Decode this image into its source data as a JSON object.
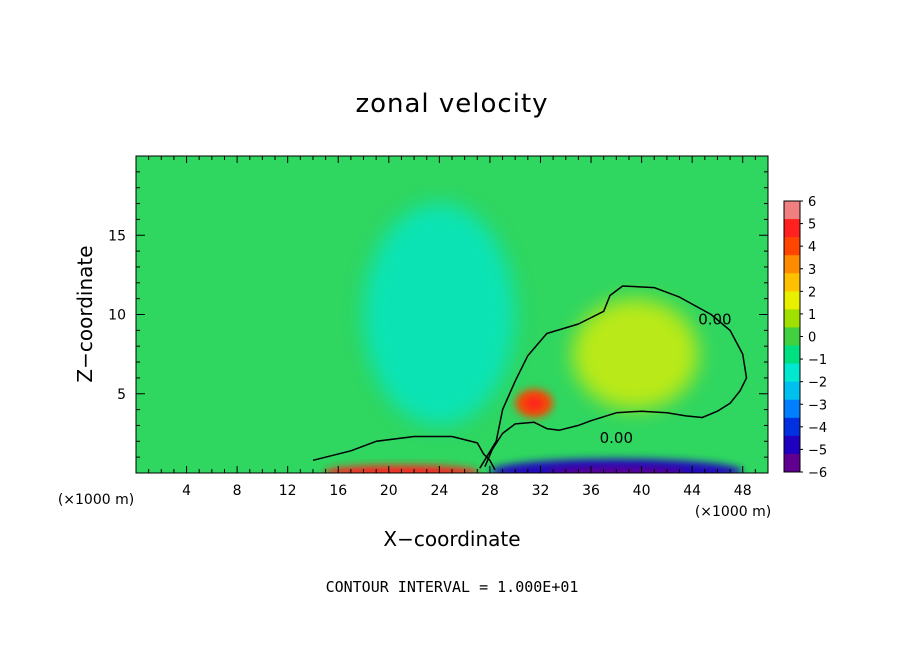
{
  "chart_data": {
    "type": "heatmap",
    "title": "zonal velocity",
    "xlabel": "X−coordinate",
    "ylabel": "Z−coordinate",
    "x_unit": "(×1000 m)",
    "z_unit": "",
    "xlim": [
      0,
      50
    ],
    "ylim": [
      0,
      20
    ],
    "x_ticks": [
      4,
      8,
      12,
      16,
      20,
      24,
      28,
      32,
      36,
      40,
      44,
      48
    ],
    "y_ticks": [
      5,
      10,
      15
    ],
    "colorbar": {
      "levels": [
        6,
        5,
        4,
        3,
        2,
        1,
        0,
        -1,
        -2,
        -3,
        -4,
        -5,
        -6
      ],
      "labels": [
        "6",
        "5",
        "4",
        "3",
        "2",
        "1",
        "0",
        "−1",
        "−2",
        "−3",
        "−4",
        "−5",
        "−6"
      ],
      "colors": [
        "#f08080",
        "#ff2020",
        "#ff4500",
        "#ff8c00",
        "#ffc000",
        "#e8f000",
        "#a0e000",
        "#40d040",
        "#00e080",
        "#00e8d0",
        "#00c0f0",
        "#0080ff",
        "#0030e0",
        "#2000c0",
        "#600090"
      ]
    },
    "contours": [
      {
        "label": "0.00",
        "label_at": [
          38,
          2.2
        ],
        "points": [
          [
            14,
            0.8
          ],
          [
            17,
            1.4
          ],
          [
            19,
            2.0
          ],
          [
            22,
            2.3
          ],
          [
            25,
            2.3
          ],
          [
            27,
            1.9
          ],
          [
            27.5,
            1.2
          ],
          [
            28,
            0.8
          ],
          [
            28.4,
            0.2
          ]
        ]
      },
      {
        "label": "0.00",
        "label_at": [
          45.8,
          9.7
        ],
        "points": [
          [
            27.2,
            0.3
          ],
          [
            28.5,
            2.0
          ],
          [
            29,
            4.0
          ],
          [
            30,
            5.8
          ],
          [
            31,
            7.4
          ],
          [
            32.5,
            8.8
          ],
          [
            35,
            9.4
          ],
          [
            37,
            10.2
          ],
          [
            37.5,
            11.2
          ],
          [
            38.5,
            11.8
          ],
          [
            41,
            11.7
          ],
          [
            43,
            11.1
          ],
          [
            45.5,
            10.0
          ],
          [
            47,
            9.0
          ],
          [
            48,
            7.5
          ],
          [
            48.3,
            6.0
          ],
          [
            47.8,
            5.2
          ],
          [
            47,
            4.4
          ],
          [
            46,
            3.9
          ],
          [
            44.8,
            3.5
          ],
          [
            43.5,
            3.6
          ],
          [
            42,
            3.8
          ],
          [
            40,
            3.9
          ],
          [
            38,
            3.8
          ],
          [
            36,
            3.3
          ],
          [
            35,
            3.0
          ],
          [
            33.5,
            2.7
          ],
          [
            32.5,
            2.8
          ],
          [
            31.5,
            3.2
          ],
          [
            30,
            3.1
          ],
          [
            29,
            2.5
          ],
          [
            28.2,
            1.5
          ],
          [
            27.6,
            0.4
          ]
        ]
      }
    ],
    "features": [
      {
        "kind": "hot-blob",
        "value": 4.5,
        "center": [
          31.5,
          4.4
        ],
        "radius": [
          1.5,
          0.9
        ]
      },
      {
        "kind": "cool-band",
        "value": -2,
        "center": [
          24,
          10
        ],
        "radius": [
          6,
          7
        ]
      },
      {
        "kind": "warm-lobe",
        "value": 1.5,
        "center": [
          39.5,
          7.5
        ],
        "radius": [
          5,
          3.5
        ]
      },
      {
        "kind": "surface-heat",
        "value": 5,
        "center": [
          21,
          0.1
        ],
        "radius": [
          6,
          0.4
        ]
      },
      {
        "kind": "surface-cold",
        "value": -5,
        "center": [
          38,
          0.1
        ],
        "radius": [
          10,
          0.8
        ]
      }
    ],
    "legend": "right",
    "grid": false
  },
  "note": "CONTOUR INTERVAL = 1.000E+01"
}
